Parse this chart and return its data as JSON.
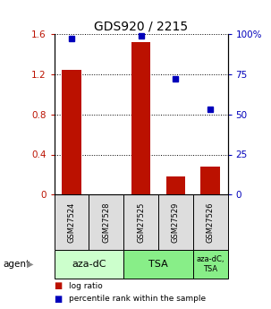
{
  "title": "GDS920 / 2215",
  "samples": [
    "GSM27524",
    "GSM27528",
    "GSM27525",
    "GSM27529",
    "GSM27526"
  ],
  "log_ratio": [
    1.24,
    0.0,
    1.52,
    0.18,
    0.28
  ],
  "percentile_rank": [
    97.0,
    null,
    99.0,
    72.0,
    53.0
  ],
  "ylim_left": [
    0,
    1.6
  ],
  "ylim_right": [
    0,
    100
  ],
  "yticks_left": [
    0,
    0.4,
    0.8,
    1.2,
    1.6
  ],
  "ytick_labels_left": [
    "0",
    "0.4",
    "0.8",
    "1.2",
    "1.6"
  ],
  "yticks_right": [
    0,
    25,
    50,
    75,
    100
  ],
  "ytick_labels_right": [
    "0",
    "25",
    "50",
    "75",
    "100%"
  ],
  "bar_color": "#bb1100",
  "marker_color": "#0000bb",
  "agent_groups": [
    {
      "label": "aza-dC",
      "span": [
        0,
        2
      ],
      "color": "#ccffcc"
    },
    {
      "label": "TSA",
      "span": [
        2,
        4
      ],
      "color": "#88ee88"
    },
    {
      "label": "aza-dC,\nTSA",
      "span": [
        4,
        5
      ],
      "color": "#88ee88"
    }
  ],
  "legend_bar_label": "log ratio",
  "legend_marker_label": "percentile rank within the sample",
  "sample_bg_color": "#dddddd",
  "agent_label": "agent",
  "title_fontsize": 10,
  "tick_fontsize": 7.5,
  "sample_fontsize": 6,
  "agent_fontsize": 8,
  "bar_width": 0.55
}
